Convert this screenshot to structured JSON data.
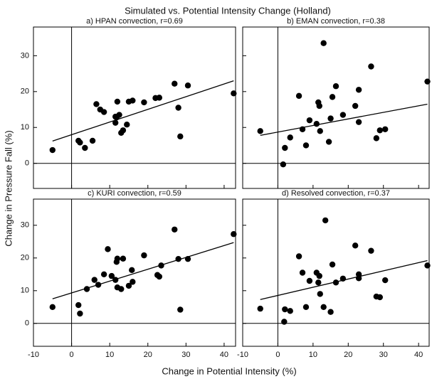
{
  "title": "Simulated vs. Potential Intensity Change (Holland)",
  "xlabel": "Change in Potential Intensity (%)",
  "ylabel": "Change in Pressure Fall (%)",
  "chart_data": [
    {
      "type": "scatter",
      "title": "a) HPAN convection, r=0.69",
      "color": "#000000",
      "x": [
        -5,
        1.8,
        2.2,
        3.5,
        5.5,
        6.5,
        7.5,
        8.5,
        11.5,
        11.5,
        11.8,
        12,
        12.5,
        13,
        13.5,
        14.5,
        15,
        16,
        19,
        22,
        23,
        27,
        28,
        28.5,
        30.5,
        42.5
      ],
      "values": [
        3.7,
        6.3,
        5.8,
        4.3,
        6.3,
        16.5,
        15,
        14.3,
        13,
        11.3,
        12.8,
        17.2,
        13.5,
        8.5,
        9.2,
        10.8,
        17.2,
        17.5,
        17,
        18.2,
        18.3,
        22.2,
        15.5,
        7.5,
        21.7,
        19.5
      ],
      "trend_x": [
        -5,
        42.5
      ],
      "trend_y": [
        6.2,
        23
      ],
      "xlim": [
        -10,
        43
      ],
      "ylim": [
        -7,
        38
      ],
      "xticks": [
        -10,
        0,
        10,
        20,
        30,
        40
      ],
      "yticks": [
        0,
        10,
        20,
        30
      ]
    },
    {
      "type": "scatter",
      "title": "b) EMAN convection, r=0.38",
      "color": "#000000",
      "x": [
        -5,
        1.5,
        2,
        3.5,
        6,
        7,
        8,
        9,
        11,
        11.5,
        11.8,
        12,
        13,
        14.5,
        15,
        15.5,
        16.5,
        18.5,
        22,
        23,
        23,
        26.5,
        28,
        29,
        30.5,
        42.5
      ],
      "values": [
        9,
        -0.3,
        4.3,
        7.2,
        18.8,
        9.5,
        5,
        12,
        11,
        17,
        16,
        9,
        33.5,
        6,
        12.5,
        18.5,
        21.5,
        13.5,
        16,
        20.5,
        11.5,
        27,
        7,
        9.2,
        9.5,
        22.8
      ],
      "trend_x": [
        -5,
        42.5
      ],
      "trend_y": [
        7.8,
        16.5
      ],
      "xlim": [
        -10,
        43
      ],
      "ylim": [
        -7,
        38
      ],
      "xticks": [
        -10,
        0,
        10,
        20,
        30,
        40
      ],
      "yticks": [
        0,
        10,
        20,
        30
      ]
    },
    {
      "type": "scatter",
      "title": "c) KURI convection, r=0.59",
      "color": "#000000",
      "x": [
        -5,
        1.8,
        2.2,
        4,
        6,
        7,
        8.5,
        9.5,
        10.5,
        11.5,
        11.8,
        12,
        12,
        13,
        13.5,
        15,
        15.8,
        16,
        19,
        22.5,
        23,
        23.5,
        27,
        28,
        28.5,
        30.5,
        42.5
      ],
      "values": [
        5,
        5.6,
        3,
        10.5,
        13.3,
        11.8,
        15,
        22.7,
        14.5,
        13.3,
        18.8,
        19.8,
        11,
        10.5,
        19.8,
        11.5,
        16.3,
        12.7,
        20.8,
        14.8,
        14.3,
        17.7,
        28.7,
        19.7,
        4.2,
        19.7,
        27.3
      ],
      "trend_x": [
        -5,
        42.5
      ],
      "trend_y": [
        7.5,
        24.7
      ],
      "xlim": [
        -10,
        43
      ],
      "ylim": [
        -7,
        38
      ],
      "xticks": [
        -10,
        0,
        10,
        20,
        30,
        40
      ],
      "yticks": [
        0,
        10,
        20,
        30
      ]
    },
    {
      "type": "scatter",
      "title": "d) Resolved convection, r=0.37",
      "color": "#000000",
      "x": [
        -5,
        1.8,
        2,
        3.5,
        6,
        7,
        8,
        9,
        11,
        11.5,
        11.8,
        12,
        13,
        13.5,
        15,
        15.5,
        16.5,
        18.5,
        22,
        23,
        23,
        26.5,
        28,
        29,
        30.5,
        42.5
      ],
      "values": [
        4.5,
        0.5,
        4.3,
        3.8,
        20.5,
        15.5,
        5,
        13,
        15.5,
        12.5,
        14.5,
        9,
        5,
        31.5,
        3.5,
        18,
        12.5,
        13.7,
        23.8,
        15,
        13.8,
        22.2,
        8.2,
        8,
        13.2,
        17.7
      ],
      "trend_x": [
        -5,
        42.5
      ],
      "trend_y": [
        7.3,
        19.2
      ],
      "xlim": [
        -10,
        43
      ],
      "ylim": [
        -7,
        38
      ],
      "xticks": [
        -10,
        0,
        10,
        20,
        30,
        40
      ],
      "yticks": [
        0,
        10,
        20,
        30
      ]
    }
  ]
}
